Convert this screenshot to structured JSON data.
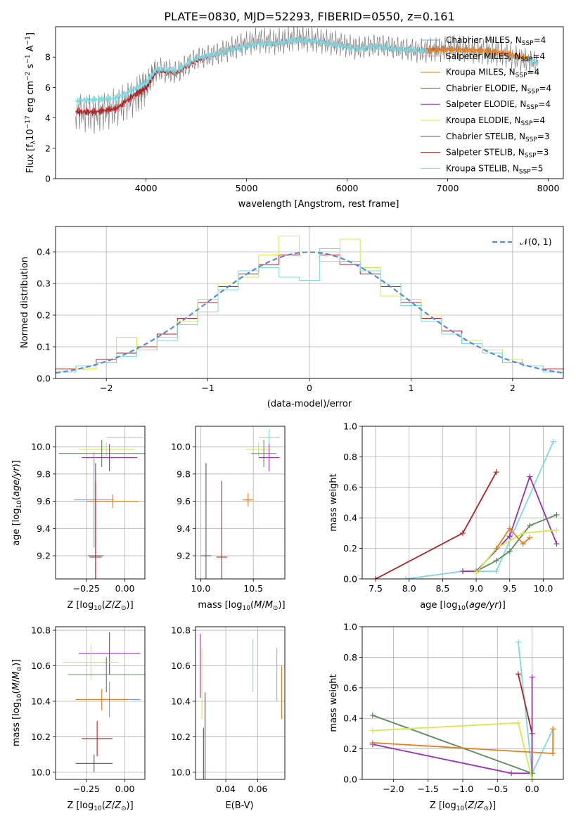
{
  "figure_title": "PLATE=0830, MJD=52293, FIBERID=0550, z=0.161",
  "colors": {
    "chabrier_miles": "#7b9ad6",
    "salpeter_miles": "#e08cc4",
    "kroupa_miles": "#e67e22",
    "chabrier_elodie": "#5b8a5b",
    "salpeter_elodie": "#9b30b0",
    "kroupa_elodie": "#d4e84a",
    "chabrier_stelib": "#555555",
    "salpeter_stelib": "#b22222",
    "kroupa_stelib": "#7dd8e0",
    "data": "#808080",
    "gauss": "#5b8bd6"
  },
  "chart_data": [
    {
      "type": "line",
      "panel": "spectrum",
      "xlabel": "wavelength [Angstrom, rest frame]",
      "ylabel": "Flux [f_λ 10^-17 erg cm^-2 s^-1 A^-1]",
      "xlim": [
        3100,
        8150
      ],
      "ylim": [
        0,
        10
      ],
      "xticks": [
        4000,
        5000,
        6000,
        7000,
        8000
      ],
      "yticks": [
        0,
        2,
        4,
        6,
        8
      ],
      "legend": "right",
      "legend_entries": [
        {
          "label": "Chabrier MILES, N",
          "sub": "SSP",
          "eq": "=4",
          "color": "#7b9ad6"
        },
        {
          "label": "Salpeter MILES, N",
          "sub": "SSP",
          "eq": "=4",
          "color": "#e08cc4"
        },
        {
          "label": "Kroupa MILES, N",
          "sub": "SSP",
          "eq": "=4",
          "color": "#e67e22"
        },
        {
          "label": "Chabrier ELODIE, N",
          "sub": "SSP",
          "eq": "=4",
          "color": "#5b8a5b"
        },
        {
          "label": "Salpeter ELODIE, N",
          "sub": "SSP",
          "eq": "=4",
          "color": "#9b30b0"
        },
        {
          "label": "Kroupa ELODIE, N",
          "sub": "SSP",
          "eq": "=4",
          "color": "#d4e84a"
        },
        {
          "label": "Chabrier STELIB, N",
          "sub": "SSP",
          "eq": "=3",
          "color": "#555555"
        },
        {
          "label": "Salpeter STELIB, N",
          "sub": "SSP",
          "eq": "=3",
          "color": "#b22222"
        },
        {
          "label": "Kroupa STELIB, N",
          "sub": "SSP",
          "eq": "=5",
          "color": "#7dd8e0"
        }
      ],
      "series": [
        {
          "color": "#808080",
          "x": [
            3300,
            3500,
            3700,
            3900,
            4000,
            4100,
            4300,
            4500,
            4700,
            4900,
            5100,
            5300,
            5500,
            5700,
            5900,
            6100,
            6300,
            6500,
            6700,
            6900,
            7100,
            7300,
            7500,
            7700,
            7900
          ],
          "y": [
            4.4,
            4.2,
            4.7,
            5.4,
            6.1,
            7.2,
            7.0,
            7.9,
            8.2,
            8.7,
            9.1,
            9.0,
            9.3,
            9.1,
            8.9,
            8.6,
            8.8,
            8.6,
            8.4,
            8.5,
            8.6,
            8.4,
            8.3,
            7.9,
            7.6
          ]
        },
        {
          "color": "#b22222",
          "x": [
            3300,
            3500,
            3700,
            3900,
            4000,
            4100,
            4300,
            4500,
            4700,
            4900,
            5100,
            5300,
            5500,
            5700,
            5900,
            6100,
            6300,
            6500,
            6700,
            6900,
            7100,
            7300,
            7500,
            7700,
            7900
          ],
          "y": [
            4.4,
            4.4,
            4.6,
            5.6,
            6.0,
            7.1,
            7.0,
            7.8,
            8.2,
            8.6,
            8.9,
            8.9,
            9.1,
            9.0,
            8.8,
            8.6,
            8.7,
            8.5,
            8.4,
            8.5,
            8.5,
            8.4,
            8.3,
            8.0,
            7.6
          ]
        },
        {
          "color": "#7dd8e0",
          "x": [
            3300,
            3500,
            3700,
            3900,
            4000,
            4100,
            4300,
            4500,
            4700,
            4900,
            5100,
            5300,
            5500,
            5700,
            5900,
            6100,
            6300,
            6500,
            6700,
            6900,
            7100,
            7300,
            7500,
            7700,
            7900
          ],
          "y": [
            5.1,
            5.2,
            5.3,
            6.0,
            6.3,
            7.2,
            7.1,
            7.9,
            8.2,
            8.6,
            8.9,
            8.9,
            9.1,
            9.0,
            8.8,
            8.6,
            8.7,
            8.5,
            8.4,
            8.4,
            8.5,
            8.4,
            8.3,
            8.0,
            7.6
          ]
        },
        {
          "color": "#e67e22",
          "x": [
            6800,
            7000,
            7200,
            7400,
            7600,
            7800
          ],
          "y": [
            8.4,
            8.5,
            8.5,
            8.4,
            8.2,
            7.9
          ]
        }
      ]
    },
    {
      "type": "line",
      "panel": "residuals",
      "xlabel": "(data-model)/error",
      "ylabel": "Normed distribution",
      "xlim": [
        -2.5,
        2.5
      ],
      "ylim": [
        0,
        0.48
      ],
      "xticks": [
        -2,
        -1,
        0,
        1,
        2
      ],
      "yticks": [
        0.0,
        0.1,
        0.2,
        0.3,
        0.4
      ],
      "legend": "top-right",
      "legend_label": "𝒩(0, 1)",
      "series": [
        {
          "color": "#b22222",
          "bins": [
            -2.5,
            -2.3,
            -2.1,
            -1.9,
            -1.7,
            -1.5,
            -1.3,
            -1.1,
            -0.9,
            -0.7,
            -0.5,
            -0.3,
            -0.1,
            0.1,
            0.3,
            0.5,
            0.7,
            0.9,
            1.1,
            1.3,
            1.5,
            1.7,
            1.9,
            2.1,
            2.3,
            2.5
          ],
          "values": [
            0.03,
            0.04,
            0.06,
            0.08,
            0.1,
            0.14,
            0.19,
            0.24,
            0.29,
            0.33,
            0.36,
            0.39,
            0.4,
            0.39,
            0.36,
            0.33,
            0.29,
            0.24,
            0.19,
            0.15,
            0.11,
            0.08,
            0.06,
            0.04,
            0.03
          ]
        },
        {
          "color": "#d4e84a",
          "bins": [
            -2.5,
            -2.3,
            -2.1,
            -1.9,
            -1.7,
            -1.5,
            -1.3,
            -1.1,
            -0.9,
            -0.7,
            -0.5,
            -0.3,
            -0.1,
            0.1,
            0.3,
            0.5,
            0.7,
            0.9,
            1.1,
            1.3,
            1.5,
            1.7,
            1.9,
            2.1,
            2.3,
            2.5
          ],
          "values": [
            0.02,
            0.03,
            0.05,
            0.13,
            0.09,
            0.13,
            0.18,
            0.25,
            0.3,
            0.32,
            0.39,
            0.45,
            0.4,
            0.37,
            0.44,
            0.35,
            0.26,
            0.25,
            0.2,
            0.14,
            0.12,
            0.09,
            0.06,
            0.04,
            0.02
          ]
        },
        {
          "color": "#7dd8e0",
          "bins": [
            -2.5,
            -2.3,
            -2.1,
            -1.9,
            -1.7,
            -1.5,
            -1.3,
            -1.1,
            -0.9,
            -0.7,
            -0.5,
            -0.3,
            -0.1,
            0.1,
            0.3,
            0.5,
            0.7,
            0.9,
            1.1,
            1.3,
            1.5,
            1.7,
            1.9,
            2.1,
            2.3,
            2.5
          ],
          "values": [
            0.02,
            0.04,
            0.05,
            0.07,
            0.09,
            0.12,
            0.17,
            0.21,
            0.28,
            0.34,
            0.35,
            0.32,
            0.31,
            0.41,
            0.37,
            0.34,
            0.3,
            0.23,
            0.18,
            0.14,
            0.11,
            0.08,
            0.05,
            0.04,
            0.02
          ]
        }
      ],
      "gauss": {
        "mean": 0,
        "sigma": 1
      }
    },
    {
      "type": "scatter",
      "panel": "age-vs-Z",
      "xlabel": "Z [log10(Z/Z⊙)]",
      "ylabel": "age [log10(age/yr)]",
      "xlim": [
        -0.45,
        0.13
      ],
      "ylim": [
        9.03,
        10.15
      ],
      "xticks": [
        -0.25,
        0.0
      ],
      "xtick_labels": [
        "−0.25",
        "0.00"
      ],
      "yticks": [
        9.2,
        9.4,
        9.6,
        9.8,
        10.0
      ],
      "points": [
        {
          "x": 0.0,
          "y": 10.07,
          "xerr": 0.12,
          "yerr": 0.06,
          "color": "#7dd8e0"
        },
        {
          "x": -0.12,
          "y": 9.98,
          "xerr": 0.18,
          "yerr": 0.05,
          "color": "#d4e84a"
        },
        {
          "x": -0.15,
          "y": 9.95,
          "xerr": 0.28,
          "yerr": 0.1,
          "color": "#5b8a5b"
        },
        {
          "x": -0.1,
          "y": 9.92,
          "xerr": 0.18,
          "yerr": 0.1,
          "color": "#9b30b0"
        },
        {
          "x": -0.2,
          "y": 9.61,
          "xerr": 0.13,
          "yerr": 0.35,
          "color": "#7b9ad6"
        },
        {
          "x": -0.08,
          "y": 9.6,
          "xerr": 0.17,
          "yerr": 0.05,
          "color": "#e67e22"
        },
        {
          "x": -0.19,
          "y": 9.2,
          "xerr": 0.05,
          "yerr": 0.68,
          "color": "#555555"
        },
        {
          "x": -0.19,
          "y": 9.19,
          "xerr": 0.04,
          "yerr": 0.56,
          "color": "#b22222"
        }
      ]
    },
    {
      "type": "scatter",
      "panel": "age-vs-mass",
      "xlabel": "mass [log10(M/M⊙)]",
      "ylabel": "",
      "xlim": [
        9.95,
        10.8
      ],
      "ylim": [
        9.03,
        10.15
      ],
      "xticks": [
        10.0,
        10.5
      ],
      "yticks": [
        9.2,
        9.4,
        9.6,
        9.8,
        10.0
      ],
      "points": [
        {
          "x": 10.65,
          "y": 10.07,
          "xerr": 0.1,
          "yerr": 0.06,
          "color": "#7dd8e0"
        },
        {
          "x": 10.55,
          "y": 9.98,
          "xerr": 0.12,
          "yerr": 0.05,
          "color": "#d4e84a"
        },
        {
          "x": 10.6,
          "y": 9.95,
          "xerr": 0.12,
          "yerr": 0.1,
          "color": "#5b8a5b"
        },
        {
          "x": 10.65,
          "y": 9.92,
          "xerr": 0.1,
          "yerr": 0.1,
          "color": "#9b30b0"
        },
        {
          "x": 10.45,
          "y": 9.61,
          "xerr": 0.05,
          "yerr": 0.05,
          "color": "#e67e22"
        },
        {
          "x": 10.05,
          "y": 9.2,
          "xerr": 0.05,
          "yerr": 0.68,
          "color": "#555555"
        },
        {
          "x": 10.2,
          "y": 9.19,
          "xerr": 0.05,
          "yerr": 0.56,
          "color": "#b22222"
        }
      ]
    },
    {
      "type": "line",
      "panel": "mass-weight-vs-age",
      "xlabel": "age [log10(age/yr)]",
      "ylabel": "mass weight",
      "xlim": [
        7.3,
        10.3
      ],
      "ylim": [
        0,
        1.0
      ],
      "xticks": [
        7.5,
        8.0,
        8.5,
        9.0,
        9.5,
        10.0
      ],
      "yticks": [
        0.0,
        0.2,
        0.4,
        0.6,
        0.8,
        1.0
      ],
      "series": [
        {
          "color": "#7dd8e0",
          "x": [
            7.95,
            8.8,
            9.3,
            10.15
          ],
          "y": [
            0.0,
            0.05,
            0.05,
            0.9
          ]
        },
        {
          "color": "#b22222",
          "x": [
            7.5,
            8.8,
            9.3
          ],
          "y": [
            0.0,
            0.3,
            0.7
          ]
        },
        {
          "color": "#9b30b0",
          "x": [
            8.8,
            9.0,
            9.5,
            9.8,
            10.2
          ],
          "y": [
            0.05,
            0.05,
            0.28,
            0.67,
            0.23
          ]
        },
        {
          "color": "#5b8a5b",
          "x": [
            9.0,
            9.3,
            9.5,
            9.8,
            10.2
          ],
          "y": [
            0.05,
            0.12,
            0.18,
            0.35,
            0.42
          ]
        },
        {
          "color": "#d4e84a",
          "x": [
            9.0,
            9.3,
            9.7,
            10.2
          ],
          "y": [
            0.04,
            0.2,
            0.3,
            0.32
          ]
        },
        {
          "color": "#e67e22",
          "x": [
            9.3,
            9.5,
            9.7,
            9.8
          ],
          "y": [
            0.2,
            0.33,
            0.23,
            0.27
          ]
        }
      ]
    },
    {
      "type": "scatter",
      "panel": "mass-vs-Z",
      "xlabel": "Z [log10(Z/Z⊙)]",
      "ylabel": "mass [log10(M/M⊙)]",
      "xlim": [
        -0.45,
        0.13
      ],
      "ylim": [
        9.96,
        10.82
      ],
      "xticks": [
        -0.25,
        0.0
      ],
      "xtick_labels": [
        "−0.25",
        "0.00"
      ],
      "yticks": [
        10.0,
        10.2,
        10.4,
        10.6,
        10.8
      ],
      "points": [
        {
          "x": -0.1,
          "y": 10.67,
          "xerr": 0.2,
          "yerr": 0.12,
          "color": "#9b30b0"
        },
        {
          "x": -0.22,
          "y": 10.62,
          "xerr": 0.18,
          "yerr": 0.1,
          "color": "#d4e84a"
        },
        {
          "x": -0.12,
          "y": 10.55,
          "xerr": 0.25,
          "yerr": 0.1,
          "color": "#5b8a5b"
        },
        {
          "x": -0.1,
          "y": 10.41,
          "xerr": 0.2,
          "yerr": 0.1,
          "color": "#7b9ad6"
        },
        {
          "x": -0.15,
          "y": 10.41,
          "xerr": 0.17,
          "yerr": 0.06,
          "color": "#e67e22"
        },
        {
          "x": -0.18,
          "y": 10.19,
          "xerr": 0.1,
          "yerr": 0.1,
          "color": "#b22222"
        },
        {
          "x": -0.2,
          "y": 10.05,
          "xerr": 0.12,
          "yerr": 0.05,
          "color": "#555555"
        }
      ]
    },
    {
      "type": "scatter",
      "panel": "mass-vs-EBV",
      "xlabel": "E(B-V)",
      "ylabel": "",
      "xlim": [
        0.021,
        0.077
      ],
      "ylim": [
        9.96,
        10.82
      ],
      "xticks": [
        0.04,
        0.06
      ],
      "yticks": [
        10.0,
        10.2,
        10.4,
        10.6,
        10.8
      ],
      "points": [
        {
          "x": 0.024,
          "y": 10.6,
          "yerr": 0.18,
          "color": "#9b30b0"
        },
        {
          "x": 0.025,
          "y": 10.5,
          "yerr": 0.2,
          "color": "#d4e84a"
        },
        {
          "x": 0.027,
          "y": 10.2,
          "yerr": 0.25,
          "color": "#b22222"
        },
        {
          "x": 0.026,
          "y": 10.1,
          "yerr": 0.15,
          "color": "#555555"
        },
        {
          "x": 0.057,
          "y": 10.6,
          "yerr": 0.15,
          "color": "#7dd8e0"
        },
        {
          "x": 0.072,
          "y": 10.55,
          "yerr": 0.15,
          "color": "#e08cc4"
        },
        {
          "x": 0.075,
          "y": 10.45,
          "yerr": 0.15,
          "color": "#e67e22"
        }
      ]
    },
    {
      "type": "line",
      "panel": "mass-weight-vs-Z",
      "xlabel": "Z [log10(Z/Z⊙)]",
      "ylabel": "mass weight",
      "xlim": [
        -2.45,
        0.45
      ],
      "ylim": [
        0,
        1.0
      ],
      "xticks": [
        -2.0,
        -1.5,
        -1.0,
        -0.5,
        0.0
      ],
      "xtick_labels": [
        "−2.0",
        "−1.5",
        "−1.0",
        "−0.5",
        "0.0"
      ],
      "yticks": [
        0.0,
        0.2,
        0.4,
        0.6,
        0.8,
        1.0
      ],
      "series": [
        {
          "color": "#7dd8e0",
          "x": [
            -0.2,
            0.0,
            0.3
          ],
          "y": [
            0.9,
            0.04,
            0.33
          ]
        },
        {
          "color": "#b22222",
          "x": [
            -0.2,
            0.0,
            0.0
          ],
          "y": [
            0.69,
            0.3,
            0.0
          ]
        },
        {
          "color": "#9b30b0",
          "x": [
            -2.3,
            -0.3,
            0.0,
            0.0
          ],
          "y": [
            0.23,
            0.04,
            0.04,
            0.67
          ]
        },
        {
          "color": "#5b8a5b",
          "x": [
            -2.3,
            0.0
          ],
          "y": [
            0.42,
            0.04
          ]
        },
        {
          "color": "#d4e84a",
          "x": [
            -2.3,
            -0.2,
            0.0
          ],
          "y": [
            0.32,
            0.37,
            0.0
          ]
        },
        {
          "color": "#e67e22",
          "x": [
            -2.3,
            0.3,
            0.3
          ],
          "y": [
            0.24,
            0.17,
            0.33
          ]
        }
      ]
    }
  ]
}
